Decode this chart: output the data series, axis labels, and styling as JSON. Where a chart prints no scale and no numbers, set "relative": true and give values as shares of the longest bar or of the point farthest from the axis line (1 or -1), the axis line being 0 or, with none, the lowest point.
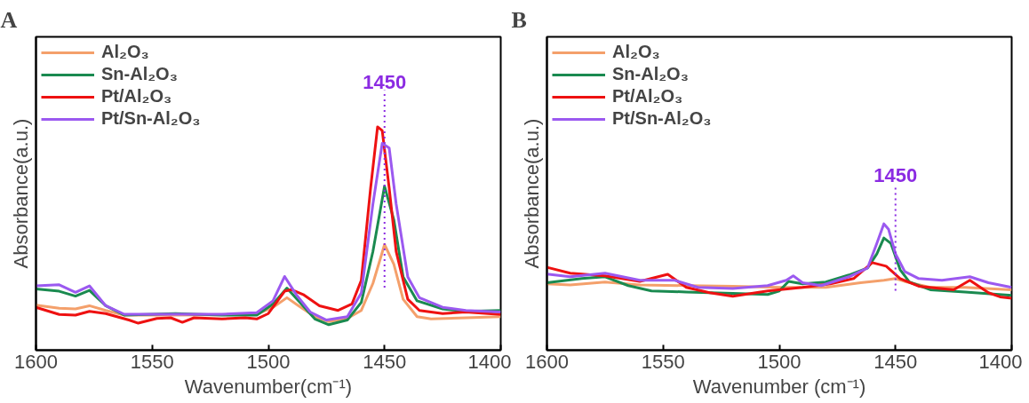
{
  "chart_data": [
    {
      "type": "line",
      "title": "A",
      "xlabel": "Wavenumber(cm⁻¹)",
      "ylabel": "Absorbance(a.u.)",
      "relative": true,
      "xlim": [
        1600,
        1400
      ],
      "xticks": [
        1600,
        1550,
        1500,
        1450,
        1400
      ],
      "grid": false,
      "legend": "top left",
      "tick_labels": "x",
      "ref_lines": [
        {
          "axis": "x",
          "value": 1450,
          "label": "1450",
          "color": "#8b2be2",
          "line_style": "dotted"
        }
      ],
      "series": [
        {
          "name": "Al₂O₃",
          "color": "#f4a06b",
          "x": [
            1600,
            1590,
            1583,
            1577,
            1570,
            1562,
            1540,
            1505,
            1498,
            1492,
            1487,
            1480,
            1474,
            1466,
            1460,
            1455,
            1450,
            1446,
            1442,
            1436,
            1430,
            1415,
            1400
          ],
          "values": [
            0.202,
            0.188,
            0.185,
            0.199,
            0.178,
            0.157,
            0.157,
            0.16,
            0.192,
            0.235,
            0.199,
            0.15,
            0.128,
            0.142,
            0.178,
            0.299,
            0.473,
            0.385,
            0.228,
            0.15,
            0.14,
            0.145,
            0.15
          ]
        },
        {
          "name": "Sn-Al₂O₃",
          "color": "#1a8a50",
          "x": [
            1600,
            1590,
            1583,
            1577,
            1570,
            1562,
            1540,
            1520,
            1505,
            1498,
            1492,
            1487,
            1480,
            1474,
            1466,
            1460,
            1455,
            1450,
            1446,
            1442,
            1436,
            1425,
            1415,
            1400
          ],
          "values": [
            0.274,
            0.264,
            0.242,
            0.268,
            0.199,
            0.157,
            0.164,
            0.157,
            0.157,
            0.207,
            0.278,
            0.221,
            0.14,
            0.114,
            0.135,
            0.214,
            0.442,
            0.734,
            0.584,
            0.328,
            0.221,
            0.185,
            0.174,
            0.178
          ]
        },
        {
          "name": "Pt/Al₂O₃",
          "color": "#ee1111",
          "x": [
            1600,
            1590,
            1583,
            1577,
            1570,
            1560,
            1556,
            1548,
            1542,
            1537,
            1532,
            1520,
            1510,
            1505,
            1500,
            1493,
            1490,
            1485,
            1478,
            1470,
            1464,
            1460,
            1456,
            1453,
            1451,
            1448,
            1445,
            1440,
            1435,
            1425,
            1415,
            1400
          ],
          "values": [
            0.192,
            0.16,
            0.157,
            0.174,
            0.164,
            0.135,
            0.121,
            0.142,
            0.145,
            0.125,
            0.145,
            0.14,
            0.145,
            0.14,
            0.164,
            0.264,
            0.271,
            0.249,
            0.199,
            0.178,
            0.207,
            0.313,
            0.726,
            1.0,
            0.983,
            0.726,
            0.442,
            0.228,
            0.178,
            0.164,
            0.171,
            0.16
          ]
        },
        {
          "name": "Pt/Sn-Al₂O₃",
          "color": "#9b59f0",
          "x": [
            1600,
            1590,
            1583,
            1577,
            1570,
            1562,
            1540,
            1520,
            1505,
            1498,
            1493,
            1488,
            1482,
            1475,
            1466,
            1460,
            1455,
            1451,
            1448,
            1445,
            1440,
            1435,
            1425,
            1415,
            1400
          ],
          "values": [
            0.288,
            0.293,
            0.259,
            0.288,
            0.199,
            0.161,
            0.161,
            0.161,
            0.168,
            0.221,
            0.33,
            0.249,
            0.171,
            0.135,
            0.15,
            0.256,
            0.655,
            0.926,
            0.905,
            0.655,
            0.328,
            0.235,
            0.192,
            0.178,
            0.171
          ]
        }
      ]
    },
    {
      "type": "line",
      "title": "B",
      "xlabel": "Wavenumber (cm⁻¹)",
      "ylabel": "Absorbance(a.u.)",
      "relative": true,
      "xlim": [
        1600,
        1400
      ],
      "xticks": [
        1600,
        1550,
        1500,
        1450,
        1400
      ],
      "grid": false,
      "legend": "top left",
      "tick_labels": "x",
      "ref_lines": [
        {
          "axis": "x",
          "value": 1450,
          "label": "1450",
          "color": "#8b2be2",
          "line_style": "dotted"
        }
      ],
      "series": [
        {
          "name": "Al₂O₃",
          "color": "#f4a06b",
          "x": [
            1600,
            1590,
            1575,
            1560,
            1540,
            1520,
            1500,
            1480,
            1465,
            1455,
            1450,
            1445,
            1435,
            1420,
            1400
          ],
          "values": [
            0.525,
            0.517,
            0.539,
            0.517,
            0.511,
            0.506,
            0.497,
            0.497,
            0.534,
            0.553,
            0.567,
            0.539,
            0.497,
            0.497,
            0.478
          ]
        },
        {
          "name": "Sn-Al₂O₃",
          "color": "#1a8a50",
          "x": [
            1600,
            1585,
            1575,
            1565,
            1555,
            1540,
            1520,
            1505,
            1500,
            1496,
            1490,
            1480,
            1470,
            1462,
            1458,
            1455,
            1452,
            1448,
            1444,
            1435,
            1420,
            1400
          ],
          "values": [
            0.534,
            0.567,
            0.581,
            0.511,
            0.469,
            0.461,
            0.45,
            0.441,
            0.469,
            0.545,
            0.525,
            0.539,
            0.595,
            0.651,
            0.763,
            0.888,
            0.846,
            0.637,
            0.539,
            0.478,
            0.461,
            0.433
          ]
        },
        {
          "name": "Pt/Al₂O₃",
          "color": "#ee1111",
          "x": [
            1600,
            1590,
            1575,
            1560,
            1548,
            1540,
            1530,
            1520,
            1505,
            1490,
            1478,
            1468,
            1460,
            1454,
            1448,
            1440,
            1425,
            1418,
            1410,
            1405,
            1400
          ],
          "values": [
            0.656,
            0.609,
            0.589,
            0.545,
            0.601,
            0.497,
            0.455,
            0.427,
            0.469,
            0.497,
            0.525,
            0.567,
            0.693,
            0.665,
            0.567,
            0.506,
            0.478,
            0.553,
            0.455,
            0.422,
            0.411
          ]
        },
        {
          "name": "Pt/Sn-Al₂O₃",
          "color": "#9b59f0",
          "x": [
            1600,
            1590,
            1575,
            1560,
            1545,
            1535,
            1520,
            1505,
            1497,
            1494,
            1490,
            1482,
            1470,
            1462,
            1458,
            1455,
            1453,
            1450,
            1446,
            1440,
            1430,
            1418,
            1410,
            1400
          ],
          "values": [
            0.603,
            0.581,
            0.609,
            0.553,
            0.553,
            0.497,
            0.489,
            0.511,
            0.553,
            0.589,
            0.534,
            0.511,
            0.581,
            0.651,
            0.846,
            1.0,
            0.958,
            0.763,
            0.623,
            0.567,
            0.553,
            0.581,
            0.534,
            0.497
          ]
        }
      ]
    }
  ]
}
